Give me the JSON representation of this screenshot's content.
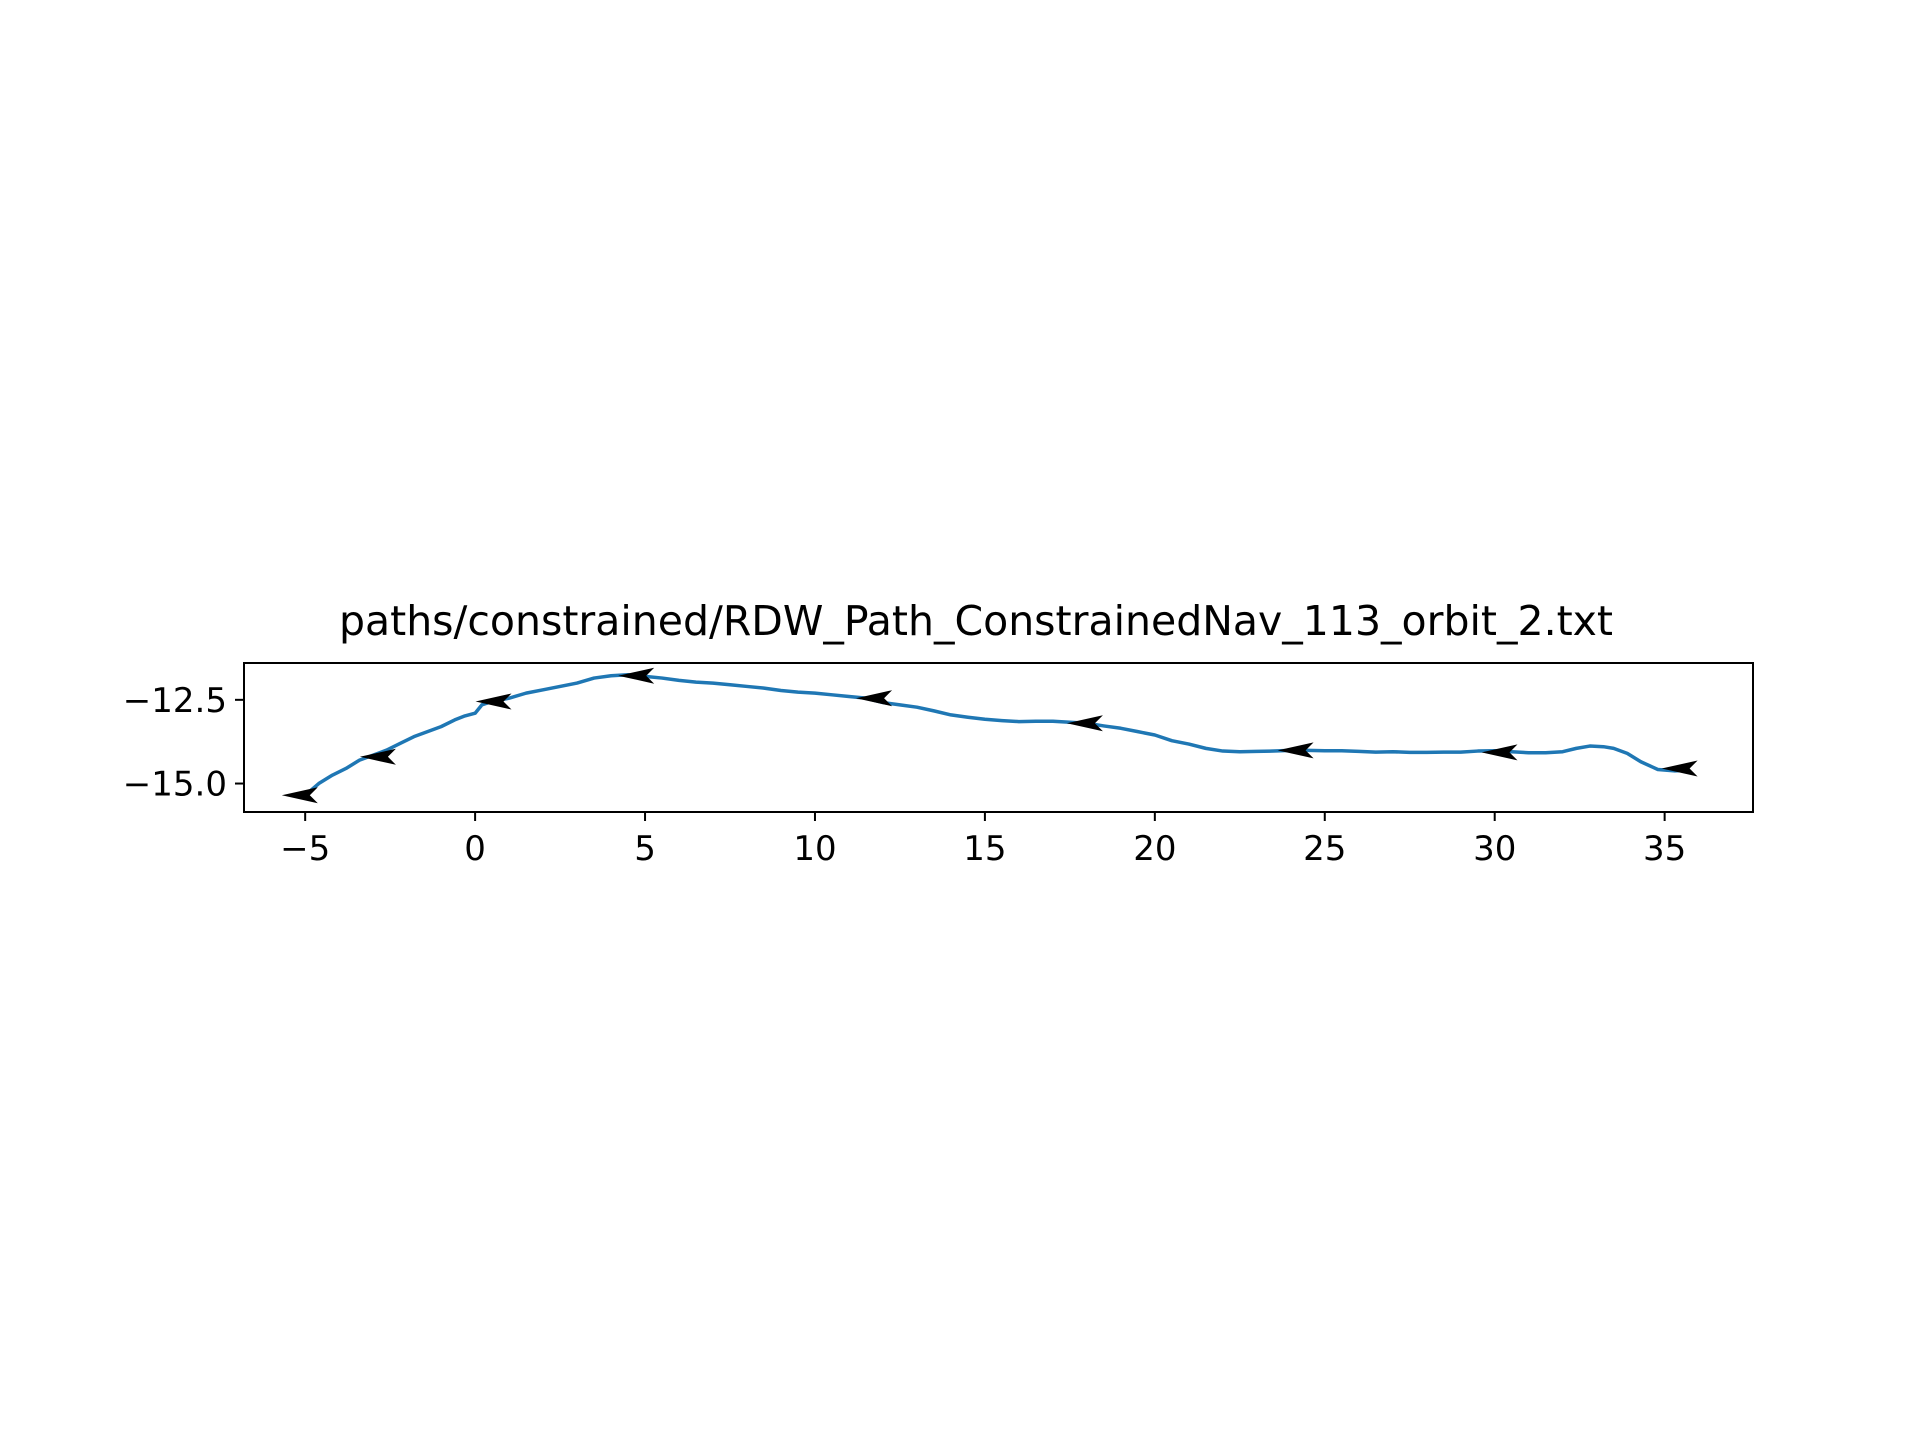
{
  "chart_data": {
    "type": "line",
    "title": "paths/constrained/RDW_Path_ConstrainedNav_113_orbit_2.txt",
    "xlabel": "",
    "ylabel": "",
    "xlim": [
      -6.8,
      37.6
    ],
    "ylim": [
      -15.85,
      -11.4
    ],
    "xticks": [
      -5,
      0,
      5,
      10,
      15,
      20,
      25,
      30,
      35
    ],
    "xtick_labels": [
      "−5",
      "0",
      "5",
      "10",
      "15",
      "20",
      "25",
      "30",
      "35"
    ],
    "yticks": [
      -12.5,
      -15.0
    ],
    "ytick_labels": [
      "−12.5",
      "−15.0"
    ],
    "grid": false,
    "series": [
      {
        "color": "#1f77b4",
        "x": [
          35.7,
          35.3,
          34.8,
          34.3,
          33.9,
          33.5,
          33.2,
          32.8,
          32.4,
          32.0,
          31.5,
          31.0,
          30.5,
          30.0,
          29.5,
          29.0,
          28.5,
          28.0,
          27.5,
          27.0,
          26.5,
          26.0,
          25.5,
          25.0,
          24.5,
          24.0,
          23.5,
          23.0,
          22.5,
          22.0,
          21.5,
          21.0,
          20.5,
          20.0,
          19.5,
          19.0,
          18.5,
          18.0,
          17.5,
          17.0,
          16.5,
          16.0,
          15.5,
          15.0,
          14.5,
          14.0,
          13.5,
          13.0,
          12.5,
          12.0,
          11.5,
          11.0,
          10.5,
          10.0,
          9.5,
          9.0,
          8.5,
          8.0,
          7.5,
          7.0,
          6.5,
          6.0,
          5.5,
          5.0,
          4.5,
          4.0,
          3.5,
          3.0,
          2.5,
          2.0,
          1.5,
          1.0,
          0.5,
          0.2,
          0.0,
          -0.3,
          -0.6,
          -1.0,
          -1.4,
          -1.8,
          -2.2,
          -2.6,
          -3.0,
          -3.4,
          -3.8,
          -4.2,
          -4.6,
          -5.0
        ],
        "y": [
          -14.6,
          -14.62,
          -14.58,
          -14.35,
          -14.1,
          -13.95,
          -13.9,
          -13.88,
          -13.95,
          -14.05,
          -14.08,
          -14.08,
          -14.05,
          -14.02,
          -14.03,
          -14.06,
          -14.06,
          -14.07,
          -14.07,
          -14.05,
          -14.06,
          -14.04,
          -14.02,
          -14.02,
          -14.01,
          -14.01,
          -14.03,
          -14.04,
          -14.05,
          -14.03,
          -13.95,
          -13.82,
          -13.72,
          -13.55,
          -13.45,
          -13.35,
          -13.28,
          -13.2,
          -13.17,
          -13.14,
          -13.14,
          -13.15,
          -13.12,
          -13.08,
          -13.02,
          -12.95,
          -12.83,
          -12.72,
          -12.65,
          -12.58,
          -12.45,
          -12.4,
          -12.35,
          -12.3,
          -12.27,
          -12.22,
          -12.15,
          -12.1,
          -12.05,
          -12.0,
          -11.97,
          -11.92,
          -11.85,
          -11.8,
          -11.75,
          -11.78,
          -11.85,
          -12.0,
          -12.1,
          -12.2,
          -12.3,
          -12.45,
          -12.55,
          -12.65,
          -12.9,
          -12.98,
          -13.1,
          -13.3,
          -13.45,
          -13.6,
          -13.8,
          -14.0,
          -14.15,
          -14.3,
          -14.55,
          -14.75,
          -15.0,
          -15.35
        ]
      }
    ],
    "arrows": {
      "color": "#000000",
      "direction": "toward decreasing x",
      "points": [
        {
          "x": 35.5,
          "y": -14.55
        },
        {
          "x": 30.2,
          "y": -14.07
        },
        {
          "x": 24.2,
          "y": -14.01
        },
        {
          "x": 18.0,
          "y": -13.2
        },
        {
          "x": 11.8,
          "y": -12.45
        },
        {
          "x": 4.8,
          "y": -11.78
        },
        {
          "x": 0.6,
          "y": -12.55
        },
        {
          "x": -2.8,
          "y": -14.2
        },
        {
          "x": -5.1,
          "y": -15.35
        }
      ]
    }
  }
}
